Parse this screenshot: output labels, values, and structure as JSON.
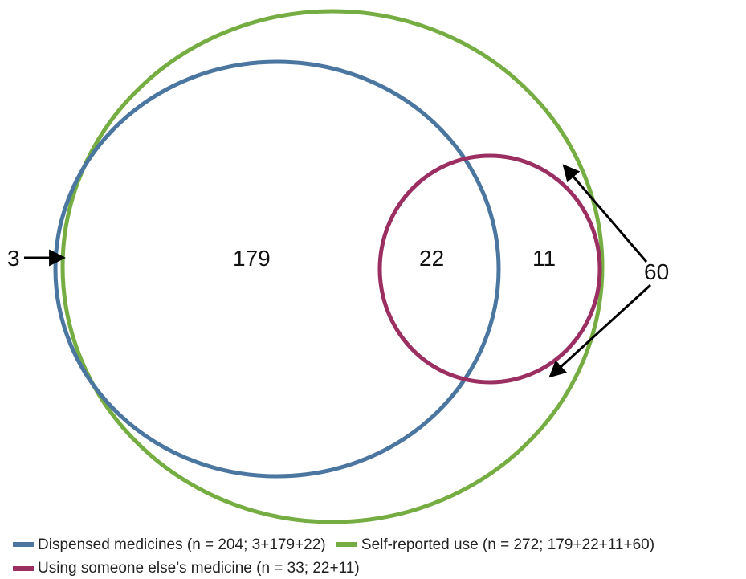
{
  "colors": {
    "dispensed": "#4a76a0",
    "self_reported": "#76ad42",
    "someone_else": "#9b2f62",
    "arrow": "#000000"
  },
  "regions": {
    "outside_left": "3",
    "dispensed_only": "179",
    "overlap": "22",
    "someone_else_only": "11",
    "self_reported_only": "60"
  },
  "legend": [
    {
      "key": "dispensed",
      "text": "Dispensed medicines (n = 204; 3+179+22)"
    },
    {
      "key": "self_reported",
      "text": "Self-reported use (n = 272; 179+22+11+60)"
    },
    {
      "key": "someone_else",
      "text": "Using someone else’s medicine (n = 33; 22+11)"
    }
  ]
}
